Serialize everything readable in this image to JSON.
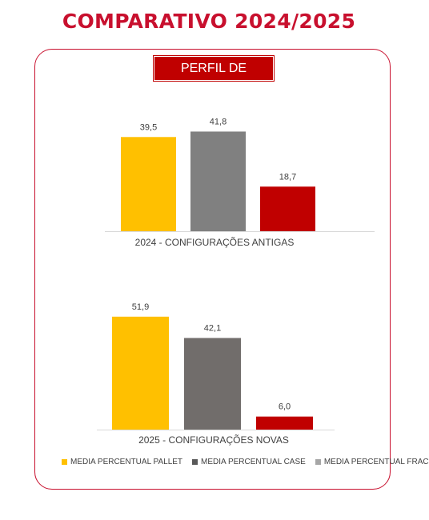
{
  "header": {
    "title": "COMPARATIVO 2024/2025"
  },
  "badge": {
    "label": "PERFIL DE TAREFAS"
  },
  "chart_data": [
    {
      "type": "bar",
      "title": "2024 - CONFIGURAÇÕES ANTIGAS",
      "series": [
        {
          "name": "MEDIA PERCENTUAL PALLET",
          "value": 39.5,
          "label": "39,5",
          "color": "#ffc000"
        },
        {
          "name": "MEDIA PERCENTUAL CASE",
          "value": 41.8,
          "label": "41,8",
          "color": "#808080"
        },
        {
          "name": "MEDIA PERCENTUAL FRAC",
          "value": 18.7,
          "label": "18,7",
          "color": "#c00000"
        }
      ]
    },
    {
      "type": "bar",
      "title": "2025 - CONFIGURAÇÕES NOVAS",
      "series": [
        {
          "name": "MEDIA PERCENTUAL PALLET",
          "value": 51.9,
          "label": "51,9",
          "color": "#ffc000"
        },
        {
          "name": "MEDIA PERCENTUAL CASE",
          "value": 42.1,
          "label": "42,1",
          "color": "#716d6b"
        },
        {
          "name": "MEDIA PERCENTUAL FRAC",
          "value": 6.0,
          "label": "6,0",
          "color": "#c00000"
        }
      ]
    }
  ],
  "legend": [
    {
      "label": "MEDIA PERCENTUAL PALLET",
      "color": "#ffc000"
    },
    {
      "label": "MEDIA PERCENTUAL CASE",
      "color": "#595959"
    },
    {
      "label": "MEDIA PERCENTUAL FRAC",
      "color": "#a6a6a6"
    }
  ]
}
